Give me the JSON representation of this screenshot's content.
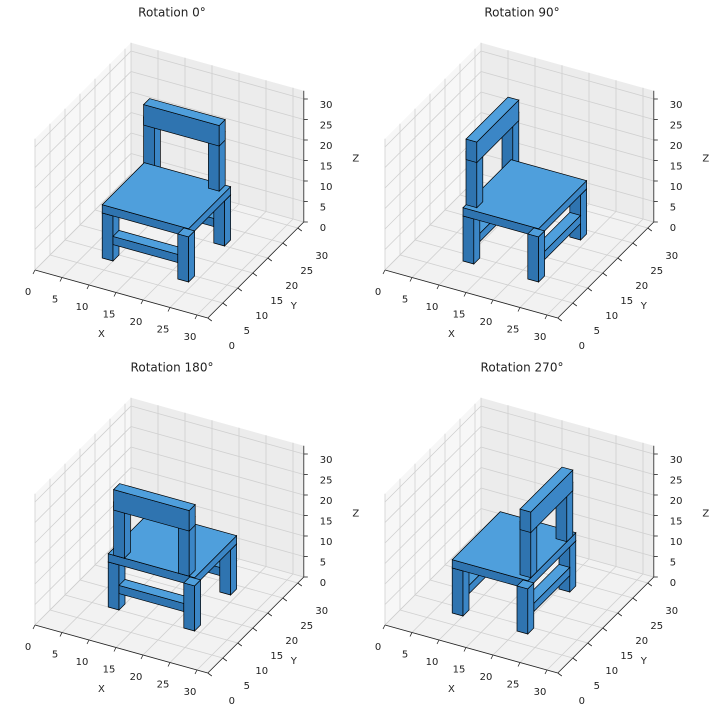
{
  "chart_data": [
    {
      "type": "voxel",
      "title": "Rotation 0°",
      "xlabel": "X",
      "ylabel": "Y",
      "zlabel": "Z",
      "xlim": [
        0,
        32
      ],
      "ylim": [
        0,
        32
      ],
      "zlim": [
        0,
        32
      ],
      "xticks": [
        0,
        5,
        10,
        15,
        20,
        25,
        30
      ],
      "yticks": [
        0,
        5,
        10,
        15,
        20,
        25,
        30
      ],
      "zticks": [
        0,
        5,
        10,
        15,
        20,
        25,
        30
      ]
    },
    {
      "type": "voxel",
      "title": "Rotation 90°",
      "xlabel": "X",
      "ylabel": "Y",
      "zlabel": "Z",
      "xlim": [
        0,
        32
      ],
      "ylim": [
        0,
        32
      ],
      "zlim": [
        0,
        32
      ],
      "xticks": [
        0,
        5,
        10,
        15,
        20,
        25,
        30
      ],
      "yticks": [
        0,
        5,
        10,
        15,
        20,
        25,
        30
      ],
      "zticks": [
        0,
        5,
        10,
        15,
        20,
        25,
        30
      ]
    },
    {
      "type": "voxel",
      "title": "Rotation 180°",
      "xlabel": "X",
      "ylabel": "Y",
      "zlabel": "Z",
      "xlim": [
        0,
        32
      ],
      "ylim": [
        0,
        32
      ],
      "zlim": [
        0,
        32
      ],
      "xticks": [
        0,
        5,
        10,
        15,
        20,
        25,
        30
      ],
      "yticks": [
        0,
        5,
        10,
        15,
        20,
        25,
        30
      ],
      "zticks": [
        0,
        5,
        10,
        15,
        20,
        25,
        30
      ]
    },
    {
      "type": "voxel",
      "title": "Rotation 270°",
      "xlabel": "X",
      "ylabel": "Y",
      "zlabel": "Z",
      "xlim": [
        0,
        32
      ],
      "ylim": [
        0,
        32
      ],
      "zlim": [
        0,
        32
      ],
      "xticks": [
        0,
        5,
        10,
        15,
        20,
        25,
        30
      ],
      "yticks": [
        0,
        5,
        10,
        15,
        20,
        25,
        30
      ],
      "zticks": [
        0,
        5,
        10,
        15,
        20,
        25,
        30
      ]
    }
  ]
}
